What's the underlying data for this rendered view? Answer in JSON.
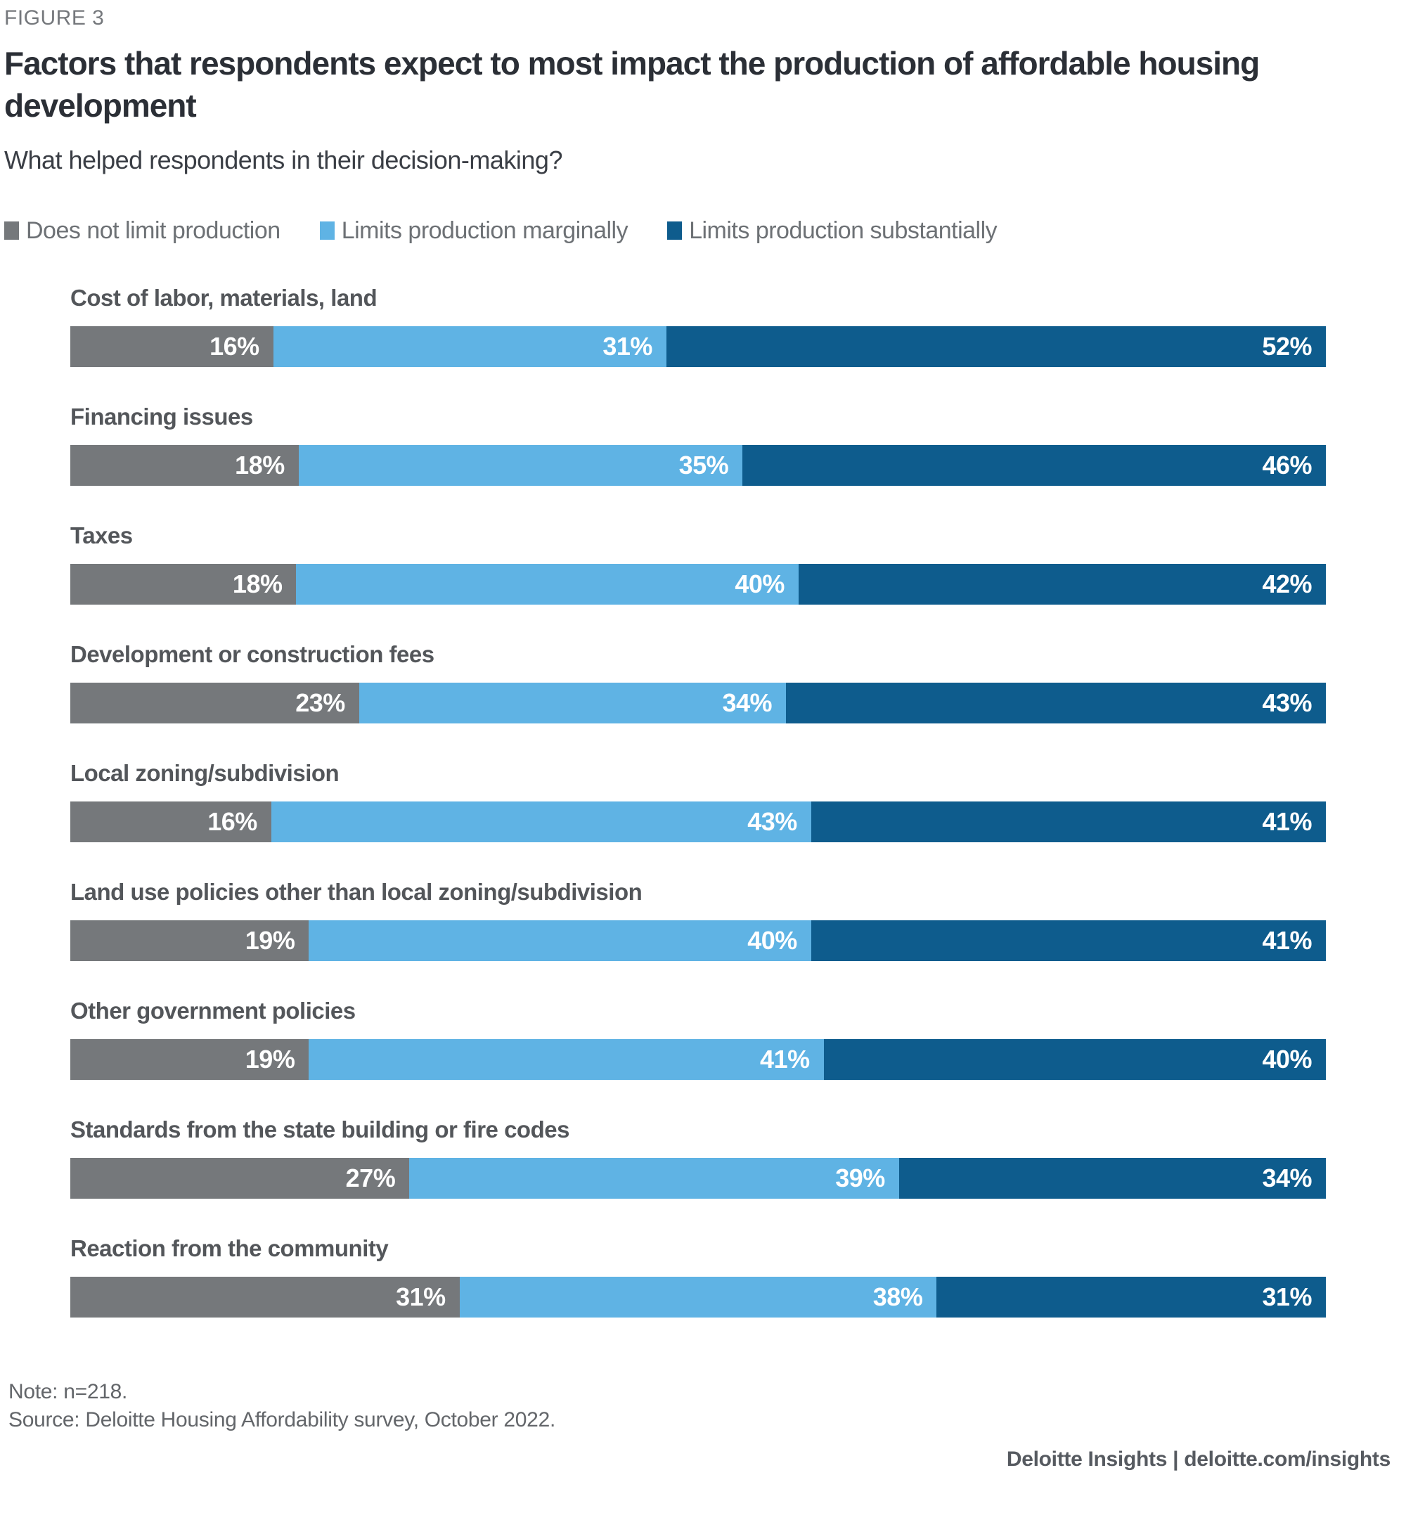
{
  "figure_label": "FIGURE 3",
  "title": "Factors that respondents expect to most impact the production of affordable housing development",
  "subtitle": "What helped respondents in their decision-making?",
  "legend": [
    {
      "label": "Does not limit production",
      "color": "#75787B"
    },
    {
      "label": "Limits production marginally",
      "color": "#5FB3E4"
    },
    {
      "label": "Limits production substantially",
      "color": "#0E5C8D"
    }
  ],
  "chart_data": {
    "type": "bar",
    "orientation": "horizontal-stacked",
    "unit": "%",
    "title": "Factors that respondents expect to most impact the production of affordable housing development",
    "categories": [
      "Cost of labor, materials, land",
      "Financing issues",
      "Taxes",
      "Development or construction fees",
      "Local zoning/subdivision",
      "Land use policies other than local zoning/subdivision",
      "Other government policies",
      "Standards from the state building or fire codes",
      "Reaction from the community"
    ],
    "series": [
      {
        "name": "Does not limit production",
        "color": "#75787B",
        "values": [
          16,
          18,
          18,
          23,
          16,
          19,
          19,
          27,
          31
        ]
      },
      {
        "name": "Limits production marginally",
        "color": "#5FB3E4",
        "values": [
          31,
          35,
          40,
          34,
          43,
          40,
          41,
          39,
          38
        ]
      },
      {
        "name": "Limits production substantially",
        "color": "#0E5C8D",
        "values": [
          52,
          46,
          42,
          43,
          41,
          41,
          40,
          34,
          31
        ]
      }
    ],
    "value_label_format": "{value}%",
    "legend_position": "top",
    "grid": false
  },
  "note": "Note: n=218.",
  "source": "Source: Deloitte Housing Affordability survey, October 2022.",
  "footer_brand": "Deloitte Insights | deloitte.com/insights"
}
